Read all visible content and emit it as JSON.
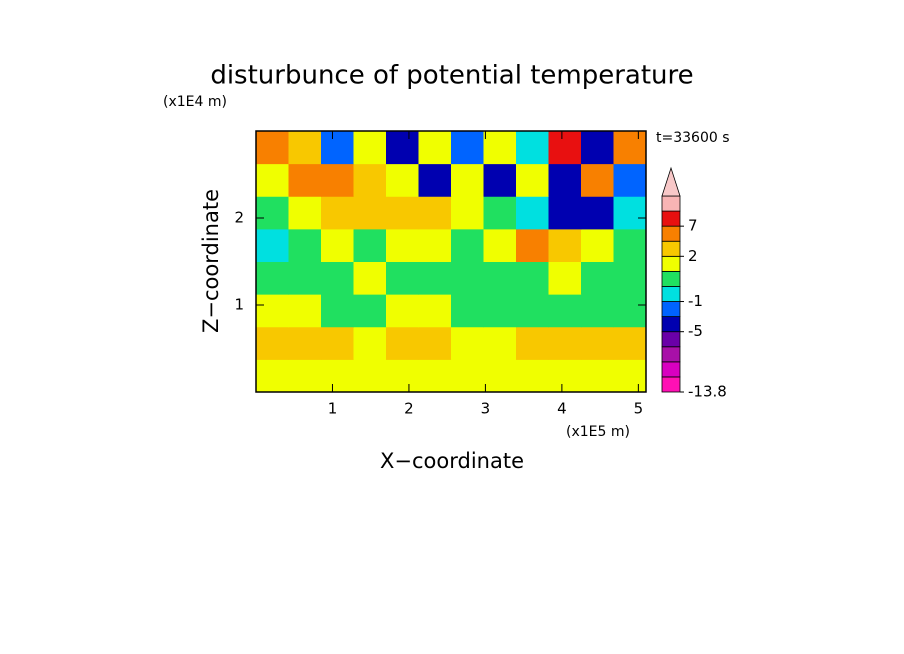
{
  "chart_data": {
    "type": "contour",
    "title": "disturbunce of potential temperature",
    "xlabel": "X−coordinate",
    "ylabel": "Z−coordinate",
    "xunit": "(x1E5 m)",
    "yunit": "(x1E4 m)",
    "annotation": "t=33600 s",
    "xlim": [
      0,
      5.1
    ],
    "ylim": [
      0,
      3
    ],
    "xticks": [
      1,
      2,
      3,
      4,
      5
    ],
    "yticks": [
      1,
      2
    ],
    "field": [
      [
        1.5,
        1.5,
        1.5,
        1.5,
        1.5,
        1.5,
        1.5,
        1.5,
        1.5,
        1.5,
        1.5,
        1.5
      ],
      [
        3,
        3,
        3,
        1.5,
        3,
        3,
        1.5,
        1.5,
        3,
        3,
        3,
        3
      ],
      [
        1.5,
        1.5,
        0.5,
        0.5,
        1.5,
        1.5,
        0.5,
        0.5,
        0.5,
        0.5,
        0.5,
        0.5
      ],
      [
        0.5,
        0.5,
        0.5,
        1.5,
        0.5,
        0.5,
        0.5,
        0.5,
        0.5,
        1.5,
        0.5,
        0.5
      ],
      [
        -0.5,
        0.5,
        1.5,
        0.5,
        1.5,
        1.5,
        0.5,
        1.5,
        5,
        3,
        1.5,
        0.5
      ],
      [
        0.5,
        1.5,
        3,
        3,
        3,
        3,
        1.5,
        0.5,
        -0.5,
        -4,
        -4,
        -0.5
      ],
      [
        1.5,
        5,
        5,
        3,
        1.5,
        -4,
        1.5,
        -4,
        1.5,
        -4,
        5,
        -2
      ],
      [
        5,
        3,
        -2,
        1.5,
        -4,
        1.5,
        -2,
        1.5,
        -0.5,
        8,
        -4,
        5
      ]
    ],
    "levels": [
      -13.8,
      -11,
      -9,
      -7,
      -5,
      -3,
      -1,
      0,
      1,
      2,
      4,
      7,
      10,
      13
    ],
    "colors": [
      "#ff10b4",
      "#d800c0",
      "#a810a8",
      "#6a00a8",
      "#0000b0",
      "#0064ff",
      "#00e0e0",
      "#20e060",
      "#f0ff00",
      "#f8c800",
      "#f88000",
      "#e81010",
      "#f8b4b4"
    ],
    "extend_color": "#f8c8c8",
    "colorbar_ticks": [
      7,
      2,
      -1,
      -5,
      -13.8
    ]
  }
}
